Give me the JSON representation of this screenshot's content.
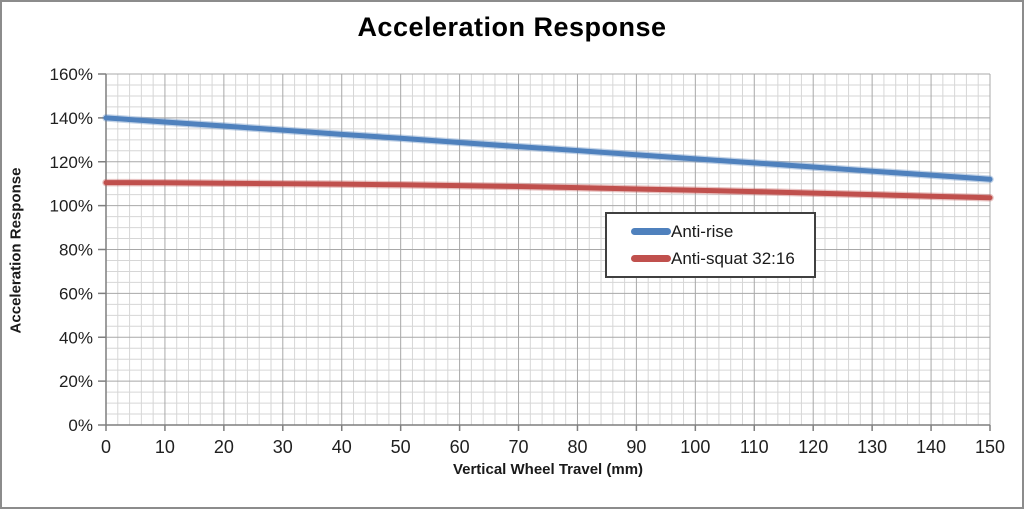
{
  "window": {
    "frame_border_color": "#8c8c8c",
    "background_color": "#ffffff"
  },
  "colors": {
    "grid_minor": "#d6d6d6",
    "grid_major": "#a8a8a8",
    "axis": "#7f7f7f",
    "tick_text": "#1f1f1f",
    "legend_border": "#404040",
    "anti_rise_blue": "#4F81BD",
    "anti_squat_red": "#C0504D"
  },
  "chart_data": {
    "type": "line",
    "title": "Acceleration Response",
    "xlabel": "Vertical Wheel Travel (mm)",
    "ylabel": "Acceleration Response",
    "xlim": [
      0,
      150
    ],
    "ylim": [
      0,
      160
    ],
    "x_tick_step": 10,
    "y_tick_step": 20,
    "x_minor_step": 2,
    "y_minor_step": 5,
    "grid": true,
    "legend_position": "center-right-inside",
    "x_ticks": [
      0,
      10,
      20,
      30,
      40,
      50,
      60,
      70,
      80,
      90,
      100,
      110,
      120,
      130,
      140,
      150
    ],
    "x_tick_labels": [
      "0",
      "10",
      "20",
      "30",
      "40",
      "50",
      "60",
      "70",
      "80",
      "90",
      "100",
      "110",
      "120",
      "130",
      "140",
      "150"
    ],
    "y_ticks": [
      0,
      20,
      40,
      60,
      80,
      100,
      120,
      140,
      160
    ],
    "y_tick_labels": [
      "0%",
      "20%",
      "40%",
      "60%",
      "80%",
      "100%",
      "120%",
      "140%",
      "160%"
    ],
    "x": [
      0,
      10,
      20,
      30,
      40,
      50,
      60,
      70,
      80,
      90,
      100,
      110,
      120,
      130,
      140,
      150
    ],
    "series": [
      {
        "name": "Anti-rise",
        "color": "#4F81BD",
        "values": [
          140.0,
          138.1,
          136.3,
          134.4,
          132.5,
          130.7,
          128.8,
          126.9,
          125.1,
          123.2,
          121.3,
          119.5,
          117.6,
          115.7,
          113.9,
          112.0
        ]
      },
      {
        "name": "Anti-squat 32:16",
        "color": "#C0504D",
        "values": [
          110.5,
          110.4,
          110.2,
          110.0,
          109.8,
          109.5,
          109.1,
          108.7,
          108.2,
          107.6,
          107.0,
          106.4,
          105.7,
          105.0,
          104.3,
          103.6
        ]
      }
    ]
  }
}
